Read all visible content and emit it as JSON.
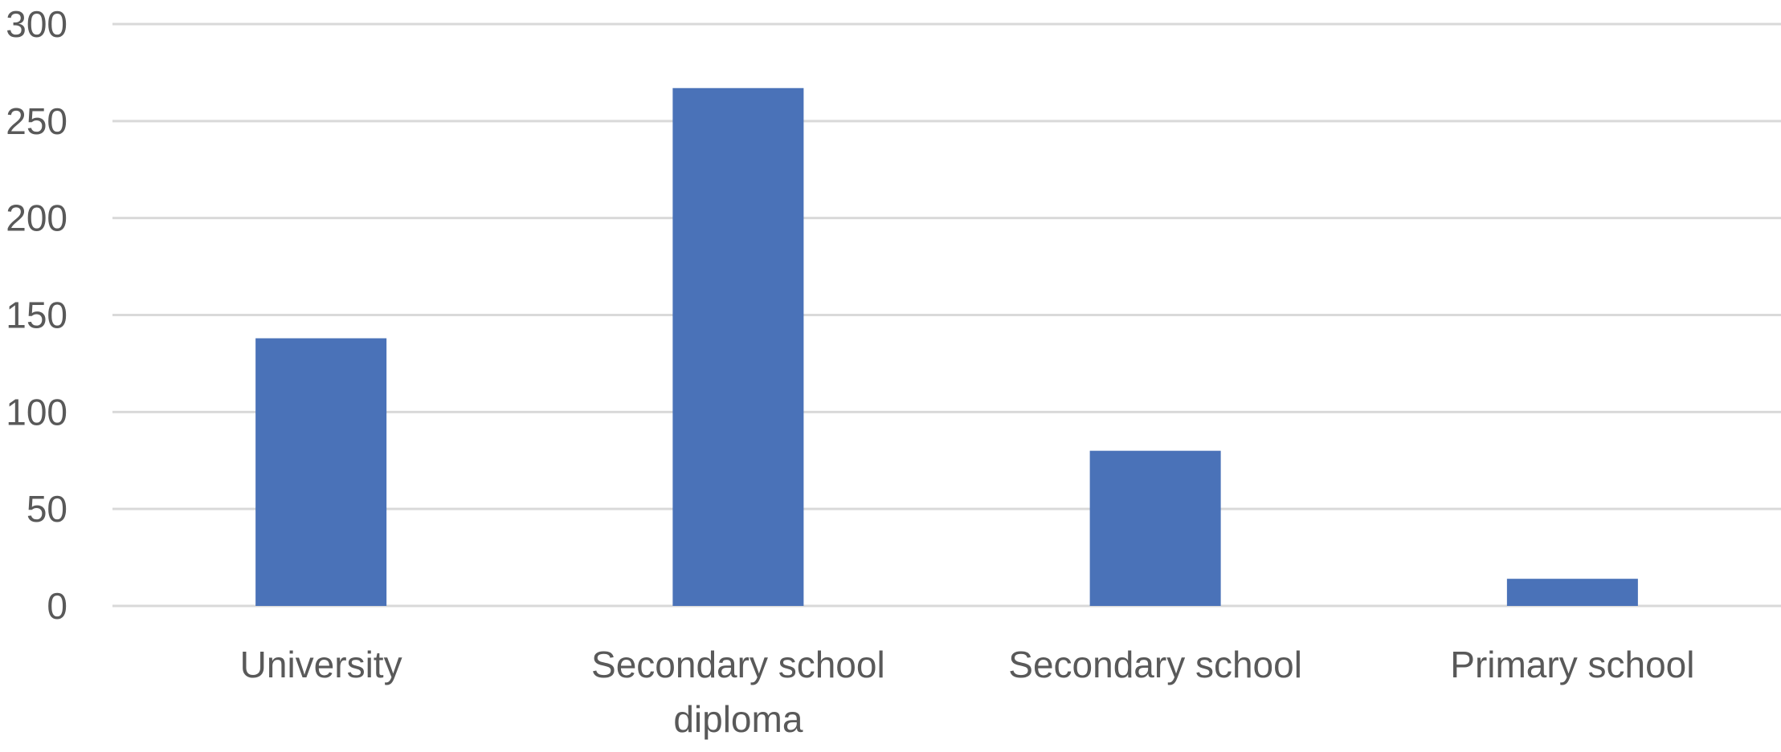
{
  "chart_data": {
    "type": "bar",
    "categories": [
      "University",
      "Secondary school diploma",
      "Secondary school",
      "Primary school"
    ],
    "values": [
      138,
      267,
      80,
      14
    ],
    "ylim": [
      0,
      300
    ],
    "yticks": [
      0,
      50,
      100,
      150,
      200,
      250,
      300
    ],
    "grid": true,
    "bar_color": "#4a72b8",
    "grid_color": "#d9d9d9",
    "label_color": "#595959"
  }
}
